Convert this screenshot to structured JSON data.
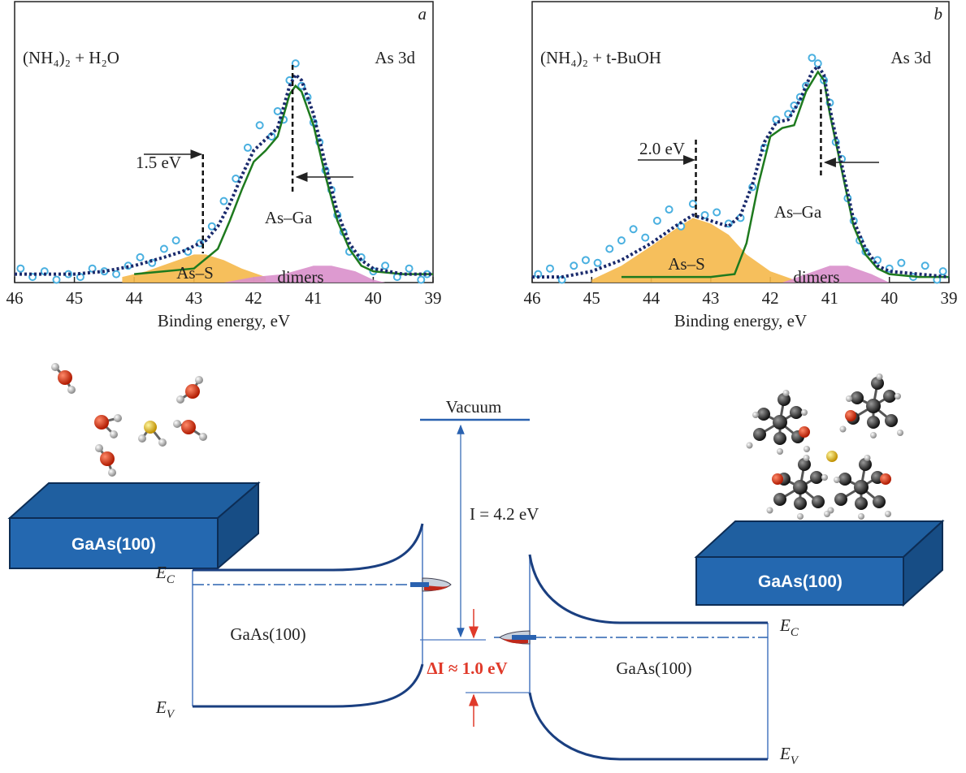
{
  "chart_data": [
    {
      "type": "xps",
      "panel": "a",
      "title": "(NH₄)₂ + H₂O",
      "subtitle": "As 3d",
      "x_label": "Binding energy, eV",
      "xlim": [
        46,
        39
      ],
      "xticks": [
        46,
        45,
        44,
        43,
        42,
        41,
        40,
        39
      ],
      "ylim": [
        0,
        100
      ],
      "annotations": [
        "1.5 eV",
        "As–Ga",
        "As–S",
        "dimers"
      ],
      "vlines": [
        42.85,
        41.35
      ],
      "series": [
        {
          "type": "area",
          "color": "#f5b84a",
          "x": [
            44.2,
            43.8,
            43.4,
            43,
            42.8,
            42.5,
            42.2,
            41.8
          ],
          "values": [
            2,
            4,
            7,
            10,
            10,
            8,
            5,
            2
          ]
        },
        {
          "type": "area",
          "color": "#d98fcb",
          "x": [
            42.5,
            42,
            41.5,
            41,
            40.7,
            40.3,
            40,
            39.8
          ],
          "values": [
            0,
            2,
            3,
            6,
            6,
            4,
            1,
            0
          ]
        },
        {
          "type": "line",
          "color": "#1e7a1e",
          "x": [
            44,
            43,
            42.6,
            42.4,
            42.2,
            42,
            41.8,
            41.6,
            41.4,
            41.3,
            41.2,
            41,
            40.8,
            40.6,
            40.4,
            40.2,
            40,
            39.5,
            39
          ],
          "values": [
            3,
            5,
            12,
            22,
            33,
            43,
            47,
            52,
            67,
            70,
            68,
            56,
            38,
            22,
            12,
            6,
            4,
            3,
            3
          ]
        },
        {
          "type": "scatter",
          "color": "#4ab0e0",
          "x": [
            45.9,
            45.7,
            45.5,
            45.3,
            45.1,
            44.9,
            44.7,
            44.5,
            44.3,
            44.1,
            43.9,
            43.7,
            43.5,
            43.3,
            43.1,
            42.9,
            42.7,
            42.5,
            42.3,
            42.1,
            41.9,
            41.7,
            41.6,
            41.5,
            41.4,
            41.3,
            41.2,
            41.1,
            41,
            40.9,
            40.8,
            40.7,
            40.6,
            40.5,
            40.4,
            40.2,
            40,
            39.8,
            39.6,
            39.4,
            39.2,
            39.1
          ],
          "values": [
            5,
            2,
            4,
            1,
            3,
            2,
            5,
            4,
            3,
            6,
            9,
            7,
            12,
            15,
            11,
            14,
            20,
            29,
            37,
            48,
            56,
            52,
            61,
            58,
            72,
            78,
            70,
            66,
            57,
            50,
            40,
            33,
            24,
            18,
            11,
            9,
            4,
            6,
            2,
            5,
            1,
            3
          ]
        },
        {
          "type": "dotted",
          "color": "#1a2a6c",
          "x": [
            46,
            45.5,
            45,
            44.5,
            44,
            43.5,
            43.2,
            43,
            42.8,
            42.6,
            42.4,
            42.2,
            42,
            41.8,
            41.6,
            41.4,
            41.3,
            41.2,
            41,
            40.8,
            40.6,
            40.4,
            40.2,
            40,
            39.5,
            39
          ],
          "values": [
            3,
            3,
            3,
            4,
            6,
            9,
            11,
            13,
            15,
            20,
            28,
            38,
            47,
            51,
            55,
            70,
            74,
            72,
            60,
            42,
            25,
            14,
            8,
            5,
            3,
            3
          ]
        }
      ]
    },
    {
      "type": "xps",
      "panel": "b",
      "title": "(NH₄)₂ + t-BuOH",
      "subtitle": "As 3d",
      "x_label": "Binding energy, eV",
      "xlim": [
        46,
        39
      ],
      "xticks": [
        46,
        45,
        44,
        43,
        42,
        41,
        40,
        39
      ],
      "ylim": [
        0,
        100
      ],
      "annotations": [
        "2.0 eV",
        "As–Ga",
        "As–S",
        "dimers"
      ],
      "vlines": [
        43.25,
        41.15
      ],
      "series": [
        {
          "type": "area",
          "color": "#f5b84a",
          "x": [
            45,
            44.5,
            44,
            43.6,
            43.3,
            43,
            42.7,
            42.4,
            42,
            41.6
          ],
          "values": [
            1,
            6,
            13,
            19,
            23,
            21,
            17,
            10,
            4,
            1
          ]
        },
        {
          "type": "area",
          "color": "#d98fcb",
          "x": [
            41.8,
            41.4,
            41,
            40.7,
            40.3,
            40
          ],
          "values": [
            0,
            3,
            6,
            6,
            3,
            0
          ]
        },
        {
          "type": "line",
          "color": "#1e7a1e",
          "x": [
            44.5,
            43,
            42.6,
            42.4,
            42.2,
            42,
            41.8,
            41.6,
            41.4,
            41.2,
            41.1,
            41,
            40.8,
            40.6,
            40.4,
            40.2,
            40,
            39.5,
            39
          ],
          "values": [
            2,
            2,
            3,
            14,
            35,
            52,
            55,
            56,
            68,
            75,
            72,
            60,
            40,
            20,
            10,
            5,
            3,
            2,
            2
          ]
        },
        {
          "type": "scatter",
          "color": "#4ab0e0",
          "x": [
            45.9,
            45.7,
            45.5,
            45.3,
            45.1,
            44.9,
            44.7,
            44.5,
            44.3,
            44.1,
            43.9,
            43.7,
            43.5,
            43.3,
            43.1,
            42.9,
            42.7,
            42.5,
            42.3,
            42.1,
            41.9,
            41.7,
            41.6,
            41.5,
            41.4,
            41.3,
            41.2,
            41.1,
            41,
            40.9,
            40.8,
            40.7,
            40.6,
            40.5,
            40.4,
            40.2,
            40,
            39.8,
            39.6,
            39.4,
            39.2,
            39.1
          ],
          "values": [
            3,
            5,
            1,
            6,
            8,
            7,
            12,
            15,
            19,
            16,
            22,
            26,
            20,
            28,
            24,
            25,
            21,
            23,
            34,
            48,
            58,
            60,
            63,
            66,
            70,
            80,
            78,
            72,
            64,
            50,
            44,
            30,
            22,
            15,
            11,
            8,
            5,
            7,
            2,
            6,
            1,
            4
          ]
        },
        {
          "type": "dotted",
          "color": "#1a2a6c",
          "x": [
            46,
            45.5,
            45,
            44.5,
            44,
            43.6,
            43.3,
            43,
            42.7,
            42.5,
            42.3,
            42.1,
            41.9,
            41.7,
            41.5,
            41.3,
            41.2,
            41.1,
            41,
            40.8,
            40.6,
            40.4,
            40.2,
            40,
            39.5,
            39
          ],
          "values": [
            2,
            2,
            4,
            8,
            14,
            20,
            24,
            22,
            20,
            24,
            35,
            50,
            57,
            58,
            65,
            75,
            77,
            74,
            62,
            42,
            22,
            12,
            6,
            4,
            3,
            2
          ]
        }
      ]
    }
  ],
  "diagram": {
    "substrate": "GaAs(100)",
    "vacuum": "Vacuum",
    "ionization": "I = 4.2 eV",
    "delta": "ΔI ≈ 1.0 eV",
    "left": {
      "ec": {
        "main": "E",
        "sub": "C"
      },
      "ev": {
        "main": "E",
        "sub": "V"
      },
      "label": "GaAs(100)"
    },
    "right": {
      "ec": {
        "main": "E",
        "sub": "C"
      },
      "ev": {
        "main": "E",
        "sub": "V"
      },
      "label": "GaAs(100)"
    }
  }
}
